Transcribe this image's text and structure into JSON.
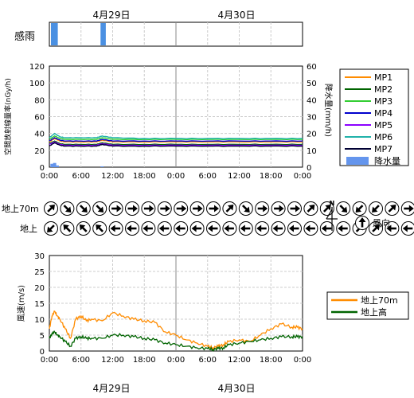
{
  "date_labels": [
    "4月29日",
    "4月30日"
  ],
  "rain_sense": {
    "label": "感雨",
    "occurrences": [
      {
        "start": 0.3,
        "end": 1.6
      },
      {
        "start": 9.7,
        "end": 10.7
      }
    ]
  },
  "time_ticks": [
    "0:00",
    "6:00",
    "12:00",
    "18:00",
    "0:00",
    "6:00",
    "12:00",
    "18:00",
    "0:00"
  ],
  "chart_data": [
    {
      "type": "line",
      "ylabel": "空間放射線量率(nGy/h)",
      "y2label": "降水量(mm/h)",
      "ylim": [
        0,
        120
      ],
      "y2lim": [
        0,
        60
      ],
      "yticks": [
        "0",
        "20",
        "40",
        "60",
        "80",
        "100",
        "120"
      ],
      "y2ticks": [
        "0",
        "10",
        "20",
        "30",
        "40",
        "50",
        "60"
      ],
      "x_hours": [
        0,
        1,
        2,
        3,
        6,
        9,
        10,
        12,
        18,
        24,
        30,
        36,
        42,
        48
      ],
      "series": [
        {
          "name": "MP1",
          "color": "#ff8c00",
          "values": [
            30,
            34,
            31,
            30,
            30,
            30,
            32,
            30,
            30,
            30,
            30,
            30,
            30,
            30
          ]
        },
        {
          "name": "MP2",
          "color": "#006400",
          "values": [
            28,
            31,
            28,
            27,
            27,
            27,
            29,
            27,
            27,
            27,
            27,
            27,
            27,
            27
          ]
        },
        {
          "name": "MP3",
          "color": "#32cd32",
          "values": [
            33,
            37,
            34,
            33,
            33,
            33,
            35,
            33,
            33,
            33,
            33,
            33,
            33,
            33
          ]
        },
        {
          "name": "MP4",
          "color": "#0000cd",
          "values": [
            31,
            35,
            32,
            31,
            31,
            31,
            33,
            31,
            31,
            31,
            31,
            31,
            31,
            31
          ]
        },
        {
          "name": "MP5",
          "color": "#8b00ff",
          "values": [
            27,
            30,
            27,
            26,
            26,
            26,
            28,
            26,
            26,
            26,
            26,
            26,
            26,
            26
          ]
        },
        {
          "name": "MP6",
          "color": "#20b2aa",
          "values": [
            35,
            40,
            36,
            35,
            35,
            35,
            37,
            35,
            34,
            34,
            34,
            34,
            34,
            34
          ]
        },
        {
          "name": "MP7",
          "color": "#000033",
          "values": [
            25,
            29,
            26,
            25,
            25,
            25,
            27,
            25,
            25,
            25,
            25,
            25,
            25,
            25
          ]
        }
      ],
      "bars": {
        "name": "降水量",
        "color": "#6495ed",
        "x_hours": [
          0.5,
          1.0,
          1.5,
          10.0
        ],
        "values": [
          2,
          2.5,
          1,
          0.5
        ]
      }
    },
    {
      "type": "line",
      "ylabel": "風速(m/s)",
      "ylim": [
        0,
        30
      ],
      "yticks": [
        "0",
        "5",
        "10",
        "15",
        "20",
        "25",
        "30"
      ],
      "x_hours": [
        0,
        0.5,
        1,
        1.5,
        2,
        3,
        4,
        5,
        6,
        7,
        8,
        10,
        12,
        14,
        16,
        18,
        20,
        22,
        24,
        26,
        28,
        30,
        31,
        32,
        33,
        34,
        36,
        38,
        40,
        42,
        44,
        46,
        47,
        48
      ],
      "series": [
        {
          "name": "地上70m",
          "color": "#ff8c00",
          "values": [
            7,
            11,
            12.5,
            11,
            10,
            7,
            4,
            10,
            11,
            9.5,
            10,
            9.5,
            12,
            11,
            10,
            9.5,
            9,
            6,
            5,
            3.5,
            2.5,
            1.5,
            1,
            1.5,
            2,
            3,
            3.5,
            3,
            5,
            7,
            8.5,
            7.5,
            7.5,
            7
          ]
        },
        {
          "name": "地上高",
          "color": "#006400",
          "values": [
            4,
            5.5,
            6,
            5,
            4.5,
            3,
            1.5,
            4,
            4.5,
            4,
            4,
            4,
            5,
            5,
            4.5,
            4,
            3.5,
            2.5,
            2,
            1.5,
            1,
            0.8,
            0.5,
            0.8,
            1,
            2,
            2.5,
            3,
            3.5,
            4,
            4.5,
            4.5,
            4.5,
            4.5
          ]
        }
      ]
    }
  ],
  "wind_direction": {
    "rows": [
      {
        "label": "地上70m",
        "directions_deg": [
          45,
          135,
          135,
          135,
          90,
          90,
          90,
          90,
          90,
          90,
          90,
          45,
          135,
          90,
          90,
          90,
          45,
          45,
          135,
          225,
          225,
          45,
          90,
          225
        ]
      },
      {
        "label": "地上",
        "directions_deg": [
          225,
          315,
          315,
          315,
          270,
          270,
          270,
          270,
          270,
          270,
          270,
          270,
          270,
          270,
          270,
          270,
          270,
          270,
          270,
          45,
          45,
          270,
          270,
          270
        ]
      }
    ],
    "north_label": "N",
    "legend_label": "風向",
    "legend_direction_deg": 0
  }
}
